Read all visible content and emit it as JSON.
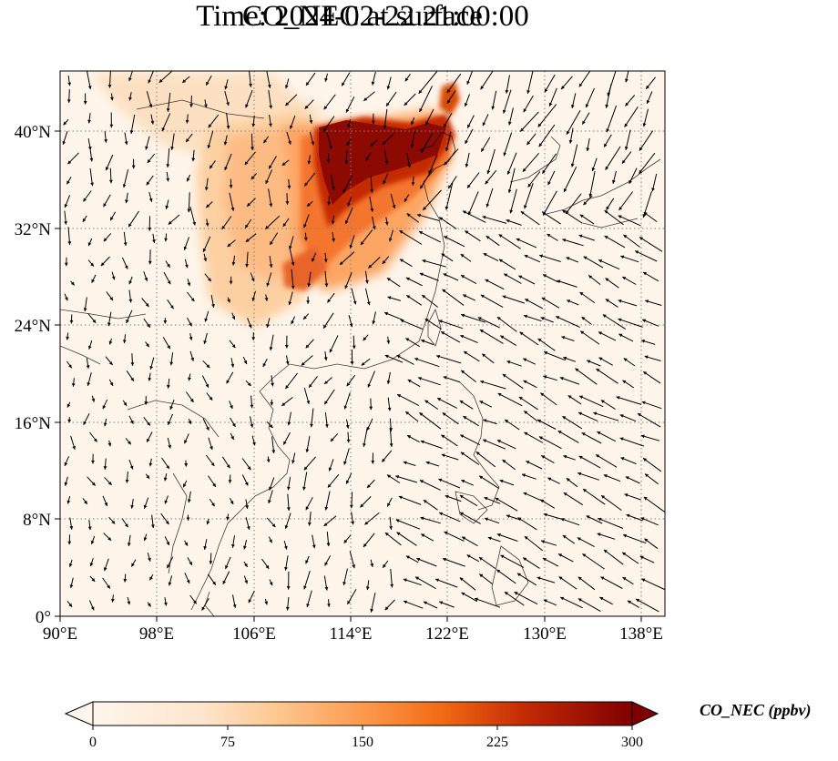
{
  "title": {
    "line1": "CO_NEC at surface",
    "line2": "Time: 2024-02-22 21:00:00"
  },
  "map": {
    "lon_range": [
      90,
      140
    ],
    "lat_range": [
      0,
      45
    ],
    "lon_ticks": [
      "90°E",
      "98°E",
      "106°E",
      "114°E",
      "122°E",
      "130°E",
      "138°E"
    ],
    "lat_ticks": [
      "0°",
      "8°N",
      "16°N",
      "24°N",
      "32°N",
      "40°N"
    ],
    "lon_tick_values": [
      90,
      98,
      106,
      114,
      122,
      130,
      138
    ],
    "lat_tick_values": [
      0,
      8,
      16,
      24,
      32,
      40
    ],
    "gridlines": "dotted",
    "background_color": "#fff5eb",
    "coastline_color": "#000000",
    "vectors": "surface wind arrows"
  },
  "colorbar": {
    "label": "CO_NEC (ppbv)",
    "ticks": [
      "0",
      "75",
      "150",
      "225",
      "300"
    ],
    "tick_values": [
      0,
      75,
      150,
      225,
      300
    ],
    "range": [
      0,
      300
    ],
    "extend": "both",
    "colormap": "OrRd",
    "colors": [
      "#fff5eb",
      "#fdd9b4",
      "#fdae6b",
      "#f4762e",
      "#d94801",
      "#a63603",
      "#7f0000"
    ]
  }
}
